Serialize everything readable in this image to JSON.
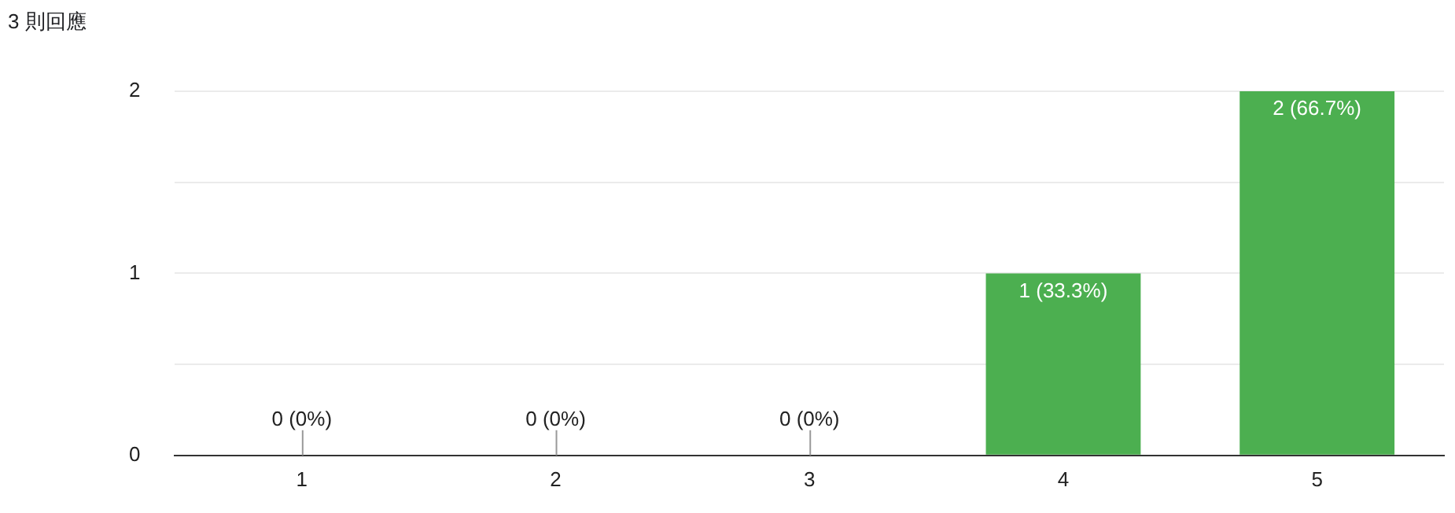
{
  "chart_data": {
    "type": "bar",
    "title": "3 則回應",
    "categories": [
      "1",
      "2",
      "3",
      "4",
      "5"
    ],
    "values": [
      0,
      0,
      0,
      1,
      2
    ],
    "value_labels": [
      "0 (0%)",
      "0 (0%)",
      "0 (0%)",
      "1 (33.3%)",
      "2 (66.7%)"
    ],
    "color": "#4caf50",
    "ylim": [
      0,
      2
    ],
    "yticks": [
      0,
      {
        "value": 0.5,
        "label": null
      },
      1,
      {
        "value": 1.5,
        "label": null
      },
      2
    ],
    "grid": "y",
    "legend": false
  }
}
